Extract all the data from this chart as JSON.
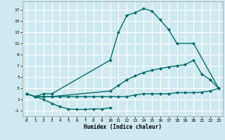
{
  "xlabel": "Humidex (Indice chaleur)",
  "bg_color": "#ceeaf0",
  "grid_color": "#ffffff",
  "line_color": "#006b6b",
  "xlim": [
    -0.5,
    23.5
  ],
  "ylim": [
    -2.0,
    18.5
  ],
  "xticks": [
    0,
    1,
    2,
    3,
    4,
    5,
    6,
    7,
    8,
    9,
    10,
    11,
    12,
    13,
    14,
    15,
    16,
    17,
    18,
    19,
    20,
    21,
    22,
    23
  ],
  "yticks": [
    -1,
    1,
    3,
    5,
    7,
    9,
    11,
    13,
    15,
    17
  ],
  "line1_x": [
    0,
    1,
    2,
    3,
    10,
    11,
    12,
    13,
    14,
    15,
    16,
    17,
    18,
    20,
    23
  ],
  "line1_y": [
    2,
    1.5,
    2,
    2,
    8,
    13,
    16,
    16.5,
    17.2,
    16.8,
    15.2,
    13.5,
    11,
    11,
    3
  ],
  "line2_x": [
    0,
    1,
    2,
    3,
    10,
    11,
    12,
    13,
    14,
    15,
    16,
    17,
    18,
    19,
    20,
    21,
    22,
    23
  ],
  "line2_y": [
    2,
    1.5,
    1.5,
    1.5,
    2.5,
    3.5,
    4.5,
    5.2,
    5.8,
    6.2,
    6.5,
    6.8,
    7,
    7.2,
    8,
    5.5,
    4.5,
    3
  ],
  "line3_x": [
    0,
    1,
    2,
    3,
    4,
    5,
    6,
    7,
    8,
    9,
    10,
    11,
    12,
    13,
    14,
    15,
    16,
    17,
    18,
    19,
    20,
    21,
    22,
    23
  ],
  "line3_y": [
    2,
    1.5,
    1.5,
    1.5,
    1.5,
    1.5,
    1.5,
    1.5,
    1.5,
    1.5,
    1.5,
    1.5,
    1.5,
    1.8,
    2,
    2,
    2,
    2,
    2.2,
    2.2,
    2.2,
    2.3,
    2.5,
    3
  ],
  "line4_x": [
    1,
    2,
    3,
    4,
    5,
    6,
    7,
    8,
    9,
    10
  ],
  "line4_y": [
    1.5,
    1.0,
    0.3,
    -0.3,
    -0.7,
    -0.8,
    -0.8,
    -0.7,
    -0.7,
    -0.5
  ]
}
